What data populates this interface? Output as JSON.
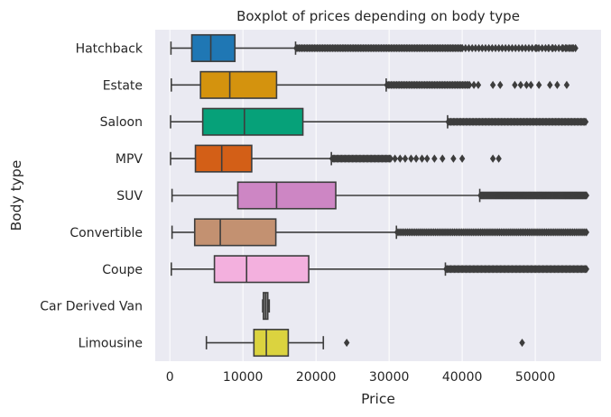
{
  "chart_data": {
    "type": "boxplot",
    "orientation": "horizontal",
    "title": "Boxplot of prices depending on body type",
    "xlabel": "Price",
    "ylabel": "Body type",
    "xlim": [
      -2000,
      59000
    ],
    "xticks": [
      0,
      10000,
      20000,
      30000,
      40000,
      50000
    ],
    "xtick_labels": [
      "0",
      "10000",
      "20000",
      "30000",
      "40000",
      "50000"
    ],
    "grid": true,
    "categories": [
      {
        "name": "Hatchback",
        "color": "#1f77b4",
        "whisker_low": 150,
        "q1": 3000,
        "median": 5600,
        "q3": 8900,
        "whisker_high": 17200,
        "fliers": [],
        "flier_bands": [
          [
            17300,
            40000,
            120
          ],
          [
            40000,
            55500,
            35
          ]
        ],
        "flier_points": [
          50200,
          51800,
          52400,
          53800,
          54300,
          54800,
          55200
        ]
      },
      {
        "name": "Estate",
        "color": "#d4930e",
        "whisker_low": 200,
        "q1": 4200,
        "median": 8200,
        "q3": 14600,
        "whisker_high": 29600,
        "flier_bands": [
          [
            29700,
            41000,
            60
          ]
        ],
        "flier_points": [
          41600,
          42200,
          44200,
          45200,
          47200,
          48000,
          48800,
          49400,
          50500,
          52000,
          53000,
          54300
        ]
      },
      {
        "name": "Saloon",
        "color": "#06a179",
        "whisker_low": 100,
        "q1": 4500,
        "median": 10200,
        "q3": 18200,
        "whisker_high": 38000,
        "flier_bands": [
          [
            38100,
            56900,
            110
          ]
        ],
        "flier_points": []
      },
      {
        "name": "MPV",
        "color": "#d35f17",
        "whisker_low": 100,
        "q1": 3500,
        "median": 7100,
        "q3": 11200,
        "whisker_high": 22100,
        "flier_bands": [
          [
            22200,
            30200,
            50
          ]
        ],
        "flier_points": [
          30800,
          31500,
          32200,
          33000,
          33700,
          34500,
          35200,
          36200,
          37300,
          38800,
          40000,
          44200,
          45000
        ]
      },
      {
        "name": "SUV",
        "color": "#cd86c4",
        "whisker_low": 300,
        "q1": 9300,
        "median": 14600,
        "q3": 22700,
        "whisker_high": 42400,
        "flier_bands": [
          [
            42500,
            57000,
            120
          ]
        ],
        "flier_points": []
      },
      {
        "name": "Convertible",
        "color": "#c39171",
        "whisker_low": 300,
        "q1": 3400,
        "median": 6900,
        "q3": 14500,
        "whisker_high": 31000,
        "flier_bands": [
          [
            31100,
            57000,
            110
          ]
        ],
        "flier_points": []
      },
      {
        "name": "Coupe",
        "color": "#f3b0de",
        "whisker_low": 200,
        "q1": 6100,
        "median": 10500,
        "q3": 19000,
        "whisker_high": 37700,
        "flier_bands": [
          [
            37800,
            57000,
            120
          ]
        ],
        "flier_points": []
      },
      {
        "name": "Car Derived Van",
        "color": "#8c8c8c",
        "whisker_low": 12700,
        "q1": 12800,
        "median": 13100,
        "q3": 13400,
        "whisker_high": 13600,
        "flier_bands": [],
        "flier_points": []
      },
      {
        "name": "Limousine",
        "color": "#dbd33f",
        "whisker_low": 5000,
        "q1": 11500,
        "median": 13200,
        "q3": 16200,
        "whisker_high": 21000,
        "flier_bands": [],
        "flier_points": [
          24200,
          48200
        ]
      }
    ]
  }
}
